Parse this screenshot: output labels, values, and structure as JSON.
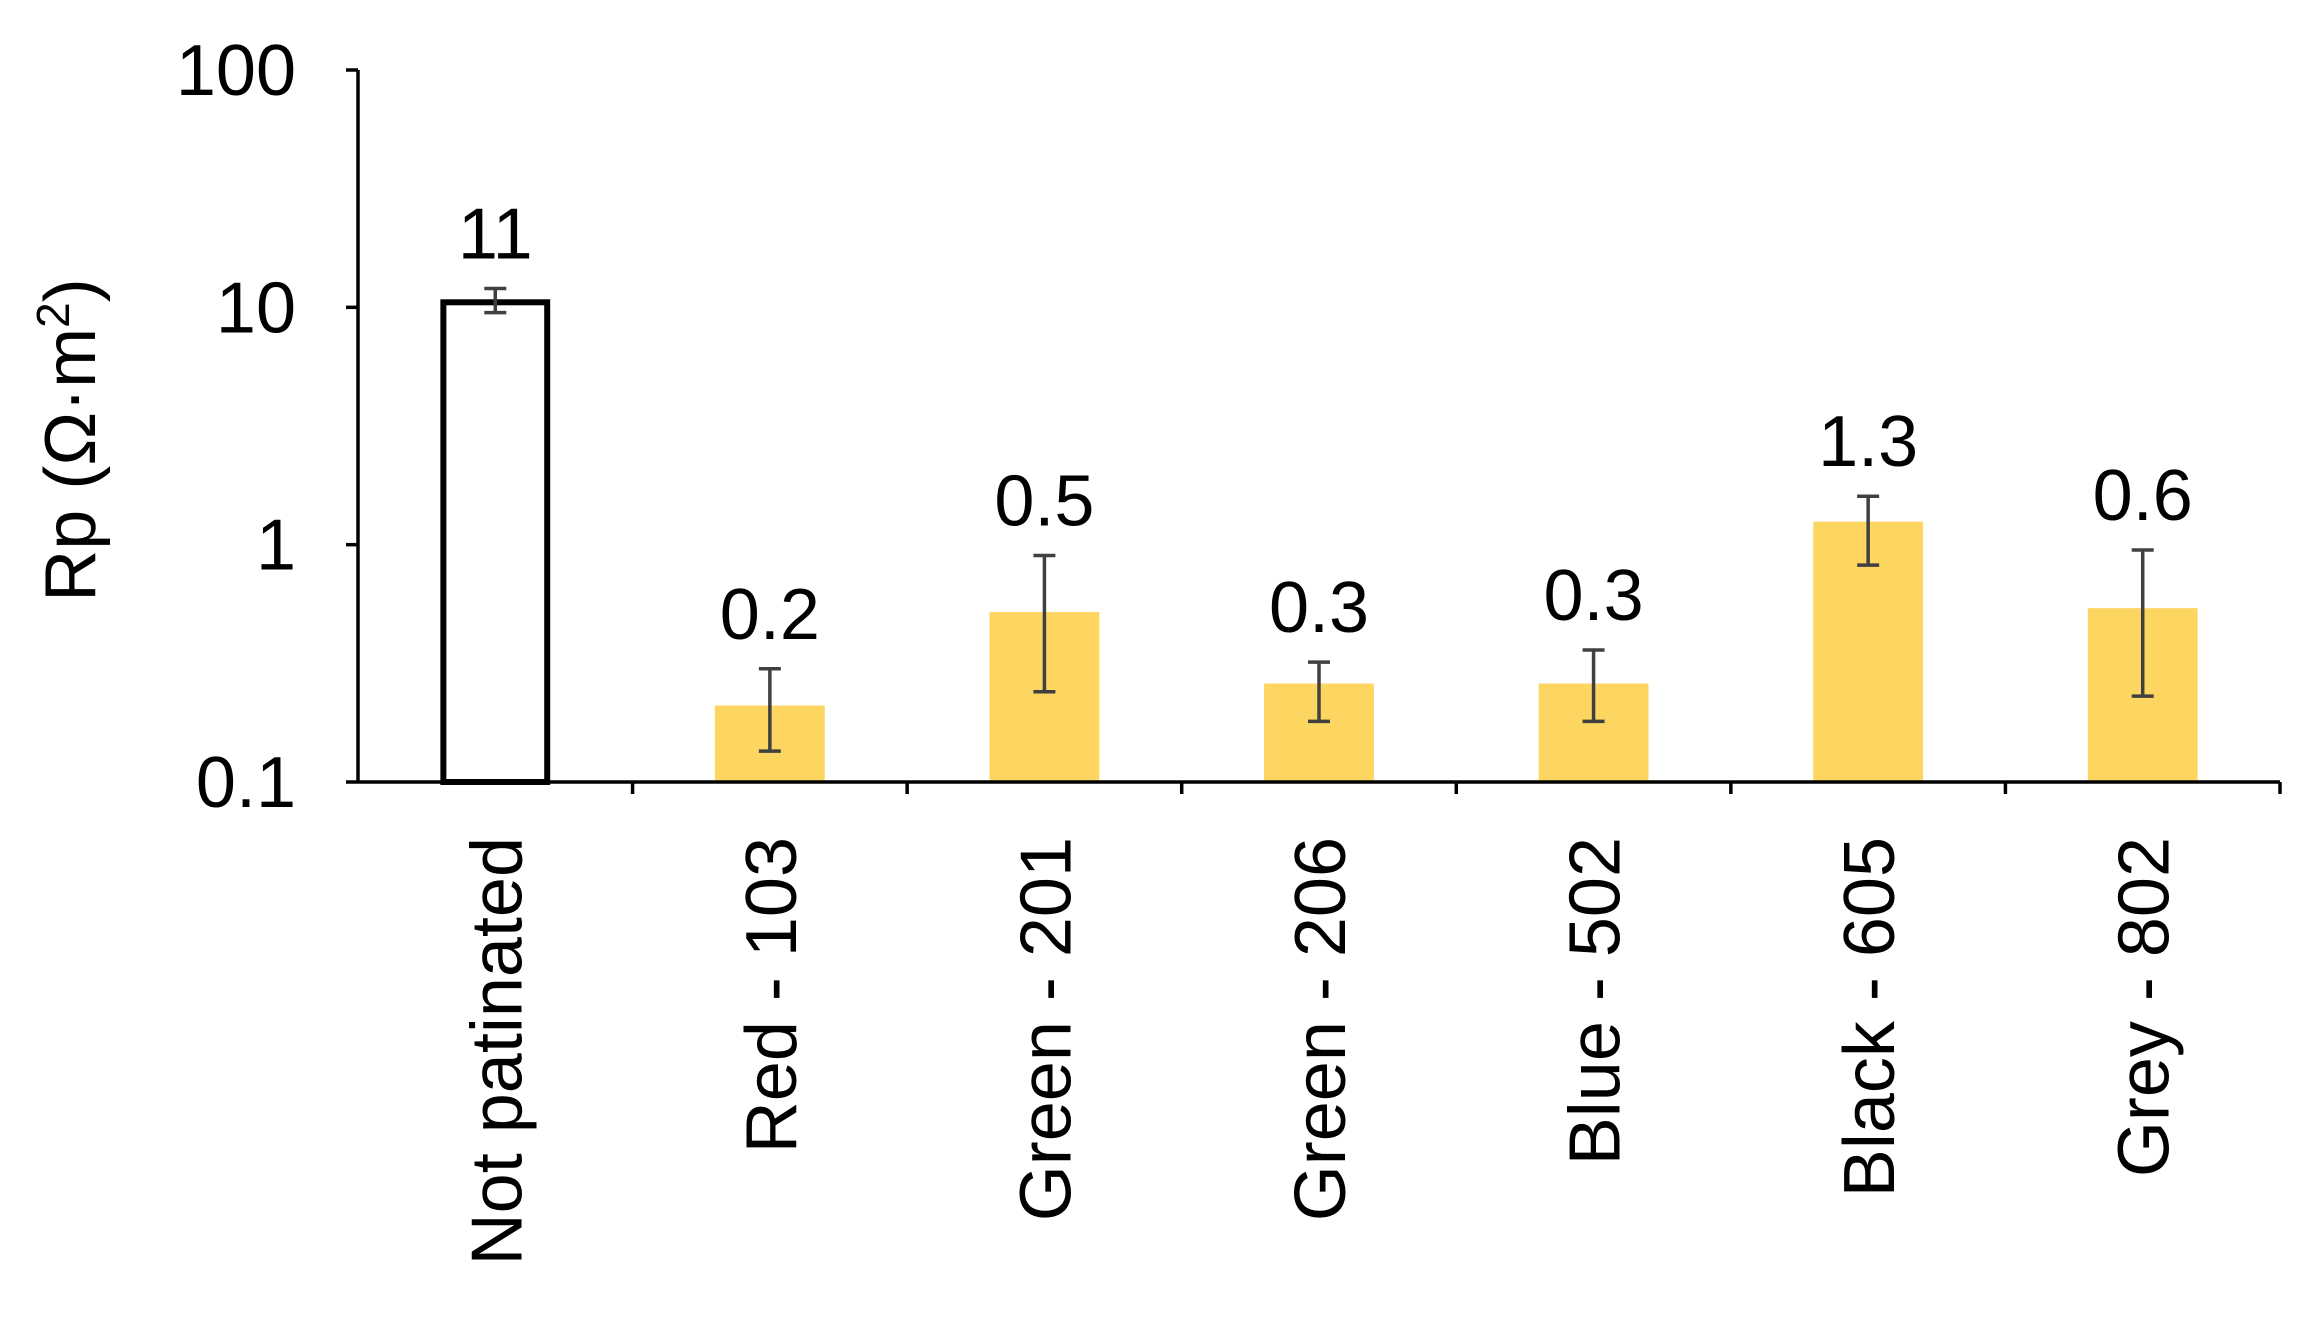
{
  "chart_data": {
    "type": "bar",
    "title": "",
    "xlabel": "",
    "ylabel": "Rp (Ω·m²)",
    "ylabel_parts": {
      "main": "Rp (Ω·m",
      "sup": "2",
      "close": ")"
    },
    "yscale": "log",
    "ylim": [
      0.1,
      100
    ],
    "yticks": [
      0.1,
      1,
      10,
      100
    ],
    "ytick_labels": [
      "0.1",
      "1",
      "10",
      "100"
    ],
    "grid": false,
    "legend": "none",
    "categories": [
      "Not patinated",
      "Red - 103",
      "Green - 201",
      "Green - 206",
      "Blue - 502",
      "Black - 605",
      "Grey - 802"
    ],
    "values": [
      11,
      0.2,
      0.5,
      0.3,
      0.3,
      1.3,
      0.6
    ],
    "bar_plot_values": [
      10.5,
      0.21,
      0.52,
      0.26,
      0.26,
      1.25,
      0.54
    ],
    "error_low": [
      9.5,
      0.135,
      0.24,
      0.18,
      0.18,
      0.82,
      0.23
    ],
    "error_high": [
      12.0,
      0.3,
      0.9,
      0.32,
      0.36,
      1.6,
      0.95
    ],
    "data_labels": [
      "11",
      "0.2",
      "0.5",
      "0.3",
      "0.3",
      "1.3",
      "0.6"
    ],
    "bar_styles": [
      "outline",
      "filled",
      "filled",
      "filled",
      "filled",
      "filled",
      "filled"
    ],
    "colors": {
      "filled": "#FDD561",
      "outline_fill": "#FFFFFF",
      "outline_stroke": "#000000",
      "axis": "#000000",
      "error_bar": "#404040"
    }
  }
}
